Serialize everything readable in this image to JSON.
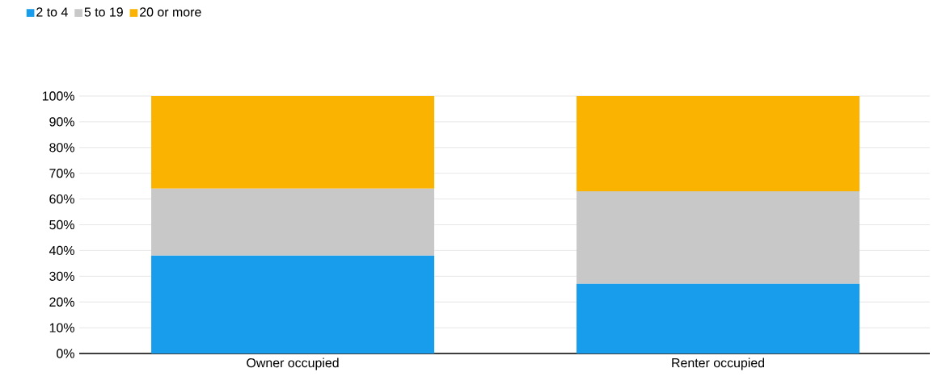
{
  "chart_data": {
    "type": "bar",
    "stacked": true,
    "categories": [
      "Owner occupied",
      "Renter occupied"
    ],
    "series": [
      {
        "name": "2 to 4",
        "color": "#189ded",
        "values": [
          38,
          27
        ]
      },
      {
        "name": "5 to 19",
        "color": "#c8c8c8",
        "values": [
          26,
          36
        ]
      },
      {
        "name": "20 or more",
        "color": "#fbb301",
        "values": [
          36,
          37
        ]
      }
    ],
    "ylim": [
      0,
      100
    ],
    "yticks": [
      {
        "value": 0,
        "label": "0%"
      },
      {
        "value": 10,
        "label": "10%"
      },
      {
        "value": 20,
        "label": "20%"
      },
      {
        "value": 30,
        "label": "30%"
      },
      {
        "value": 40,
        "label": "40%"
      },
      {
        "value": 50,
        "label": "50%"
      },
      {
        "value": 60,
        "label": "60%"
      },
      {
        "value": 70,
        "label": "70%"
      },
      {
        "value": 80,
        "label": "80%"
      },
      {
        "value": 90,
        "label": "90%"
      },
      {
        "value": 100,
        "label": "100%"
      }
    ],
    "grid": "y",
    "legend": "top left"
  }
}
